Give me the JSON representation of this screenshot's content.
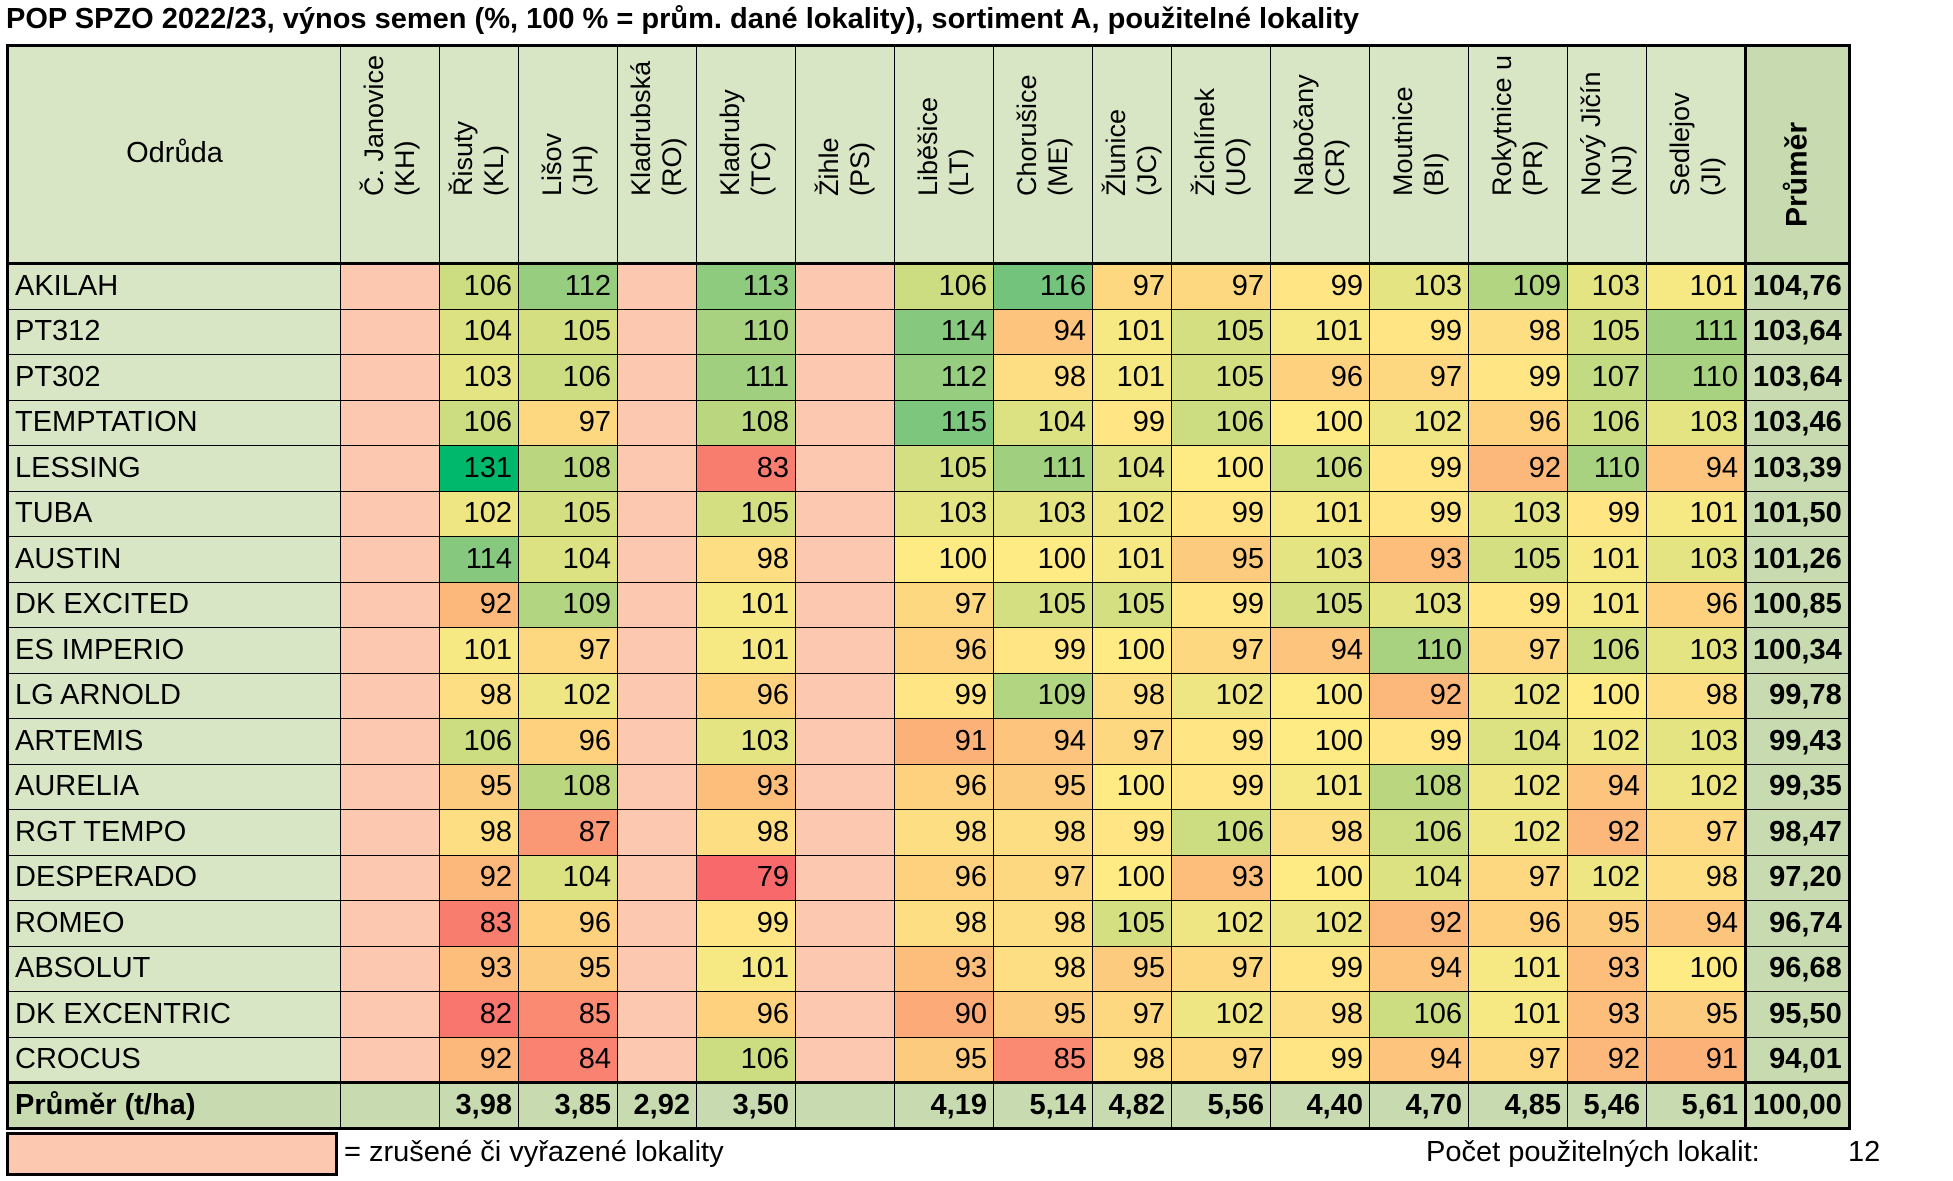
{
  "title": "POP SPZO 2022/23, výnos semen (%, 100 % = prům. dané lokality), sortiment A, použitelné lokality",
  "chart_data": {
    "type": "table",
    "row_header": "Odrůda",
    "columns": [
      {
        "name": "Č. Janovice",
        "code": "(KH)",
        "cancelled": true
      },
      {
        "name": "Řisuty",
        "code": "(KL)",
        "cancelled": false
      },
      {
        "name": "Lišov",
        "code": "(JH)",
        "cancelled": false
      },
      {
        "name": "Kladrubská",
        "code": "(RO)",
        "cancelled": true
      },
      {
        "name": "Kladruby",
        "code": "(TC)",
        "cancelled": false
      },
      {
        "name": "Žihle",
        "code": "(PS)",
        "cancelled": true
      },
      {
        "name": "Liběšice",
        "code": "(LT)",
        "cancelled": false
      },
      {
        "name": "Chorušice",
        "code": "(ME)",
        "cancelled": false
      },
      {
        "name": "Žlunice",
        "code": "(JC)",
        "cancelled": false
      },
      {
        "name": "Žichlínek",
        "code": "(UO)",
        "cancelled": false
      },
      {
        "name": "Nabočany",
        "code": "(CR)",
        "cancelled": false
      },
      {
        "name": "Moutnice",
        "code": "(BI)",
        "cancelled": false
      },
      {
        "name": "Rokytnice u Př.",
        "code": "(PR)",
        "cancelled": false
      },
      {
        "name": "Nový Jičín",
        "code": "(NJ)",
        "cancelled": false
      },
      {
        "name": "Sedlejov",
        "code": "(JI)",
        "cancelled": false
      }
    ],
    "average_column_label": "Průměr",
    "rows": [
      {
        "variety": "AKILAH",
        "values": [
          null,
          106,
          112,
          null,
          113,
          null,
          106,
          116,
          97,
          97,
          99,
          103,
          109,
          103,
          101
        ],
        "average": "104,76"
      },
      {
        "variety": "PT312",
        "values": [
          null,
          104,
          105,
          null,
          110,
          null,
          114,
          94,
          101,
          105,
          101,
          99,
          98,
          105,
          111
        ],
        "average": "103,64"
      },
      {
        "variety": "PT302",
        "values": [
          null,
          103,
          106,
          null,
          111,
          null,
          112,
          98,
          101,
          105,
          96,
          97,
          99,
          107,
          110
        ],
        "average": "103,64"
      },
      {
        "variety": "TEMPTATION",
        "values": [
          null,
          106,
          97,
          null,
          108,
          null,
          115,
          104,
          99,
          106,
          100,
          102,
          96,
          106,
          103
        ],
        "average": "103,46"
      },
      {
        "variety": "LESSING",
        "values": [
          null,
          131,
          108,
          null,
          83,
          null,
          105,
          111,
          104,
          100,
          106,
          99,
          92,
          110,
          94
        ],
        "average": "103,39"
      },
      {
        "variety": "TUBA",
        "values": [
          null,
          102,
          105,
          null,
          105,
          null,
          103,
          103,
          102,
          99,
          101,
          99,
          103,
          99,
          101
        ],
        "average": "101,50"
      },
      {
        "variety": "AUSTIN",
        "values": [
          null,
          114,
          104,
          null,
          98,
          null,
          100,
          100,
          101,
          95,
          103,
          93,
          105,
          101,
          103
        ],
        "average": "101,26"
      },
      {
        "variety": "DK EXCITED",
        "values": [
          null,
          92,
          109,
          null,
          101,
          null,
          97,
          105,
          105,
          99,
          105,
          103,
          99,
          101,
          96
        ],
        "average": "100,85"
      },
      {
        "variety": "ES IMPERIO",
        "values": [
          null,
          101,
          97,
          null,
          101,
          null,
          96,
          99,
          100,
          97,
          94,
          110,
          97,
          106,
          103
        ],
        "average": "100,34"
      },
      {
        "variety": "LG ARNOLD",
        "values": [
          null,
          98,
          102,
          null,
          96,
          null,
          99,
          109,
          98,
          102,
          100,
          92,
          102,
          100,
          98
        ],
        "average": "99,78"
      },
      {
        "variety": "ARTEMIS",
        "values": [
          null,
          106,
          96,
          null,
          103,
          null,
          91,
          94,
          97,
          99,
          100,
          99,
          104,
          102,
          103
        ],
        "average": "99,43"
      },
      {
        "variety": "AURELIA",
        "values": [
          null,
          95,
          108,
          null,
          93,
          null,
          96,
          95,
          100,
          99,
          101,
          108,
          102,
          94,
          102
        ],
        "average": "99,35"
      },
      {
        "variety": "RGT TEMPO",
        "values": [
          null,
          98,
          87,
          null,
          98,
          null,
          98,
          98,
          99,
          106,
          98,
          106,
          102,
          92,
          97
        ],
        "average": "98,47"
      },
      {
        "variety": "DESPERADO",
        "values": [
          null,
          92,
          104,
          null,
          79,
          null,
          96,
          97,
          100,
          93,
          100,
          104,
          97,
          102,
          98
        ],
        "average": "97,20"
      },
      {
        "variety": "ROMEO",
        "values": [
          null,
          83,
          96,
          null,
          99,
          null,
          98,
          98,
          105,
          102,
          102,
          92,
          96,
          95,
          94
        ],
        "average": "96,74"
      },
      {
        "variety": "ABSOLUT",
        "values": [
          null,
          93,
          95,
          null,
          101,
          null,
          93,
          98,
          95,
          97,
          99,
          94,
          101,
          93,
          100
        ],
        "average": "96,68"
      },
      {
        "variety": "DK EXCENTRIC",
        "values": [
          null,
          82,
          85,
          null,
          96,
          null,
          90,
          95,
          97,
          102,
          98,
          106,
          101,
          93,
          95
        ],
        "average": "95,50"
      },
      {
        "variety": "CROCUS",
        "values": [
          null,
          92,
          84,
          null,
          106,
          null,
          95,
          85,
          98,
          97,
          99,
          94,
          97,
          92,
          91
        ],
        "average": "94,01"
      }
    ],
    "footer": {
      "label": "Průměr (t/ha)",
      "values": [
        "",
        "3,98",
        "3,85",
        "2,92",
        "3,50",
        "",
        "4,19",
        "5,14",
        "4,82",
        "5,56",
        "4,40",
        "4,70",
        "4,85",
        "5,46",
        "5,61"
      ],
      "average": "100,00"
    },
    "colors": {
      "cancelled": "#fcc9b0",
      "header": "#d9e6c6",
      "average": "#c8dbb0",
      "scale_low": "#f8696b",
      "scale_mid": "#ffeb84",
      "scale_high": "#63be7b",
      "scale_top": "#00b86b"
    }
  },
  "legend": {
    "text": "= zrušené či vyřazené lokality",
    "count_label": "Počet použitelných lokalit:",
    "count_value": "12"
  }
}
